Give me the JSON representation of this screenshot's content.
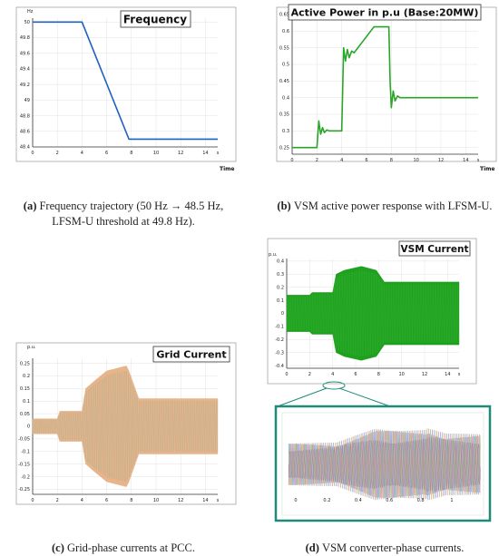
{
  "chart_data": [
    {
      "id": "a",
      "type": "line",
      "title": "Frequency",
      "xlabel": "Time",
      "ylabel": "Hz",
      "xlim": [
        0,
        15
      ],
      "ylim": [
        48.4,
        50.05
      ],
      "x_ticks": [
        "0",
        "2",
        "4",
        "6",
        "8",
        "10",
        "12",
        "14",
        "s"
      ],
      "y_ticks": [
        "50",
        "49.8",
        "49.6",
        "49.4",
        "49.2",
        "49",
        "48.8",
        "48.6",
        "48.4"
      ],
      "series": [
        {
          "color": "#1f5fc0",
          "x": [
            0,
            4,
            7.8,
            15
          ],
          "y": [
            50,
            50,
            48.5,
            48.5
          ]
        }
      ],
      "caption_label": "(a)",
      "caption": "Frequency trajectory (50 Hz → 48.5 Hz, LFSM-U threshold at 49.8 Hz)."
    },
    {
      "id": "b",
      "type": "line",
      "title": "Active Power in p.u (Base:20MW)",
      "xlabel": "Time",
      "ylabel": "",
      "xlim": [
        0,
        15
      ],
      "ylim": [
        0.23,
        0.65
      ],
      "x_ticks": [
        "0",
        "2",
        "4",
        "6",
        "8",
        "10",
        "12",
        "14",
        "s"
      ],
      "y_ticks": [
        "0.65",
        "0.6",
        "0.55",
        "0.5",
        "0.45",
        "0.4",
        "0.35",
        "0.3",
        "0.25"
      ],
      "series": [
        {
          "color": "#2aa52a",
          "x": [
            0,
            2,
            2.15,
            2.3,
            2.45,
            2.6,
            2.8,
            3.0,
            4.0,
            4.15,
            4.3,
            4.45,
            4.6,
            4.8,
            5.0,
            6.6,
            7.8,
            7.9,
            8.0,
            8.15,
            8.3,
            8.5,
            8.7,
            15
          ],
          "y": [
            0.25,
            0.25,
            0.33,
            0.29,
            0.31,
            0.295,
            0.303,
            0.3,
            0.3,
            0.55,
            0.51,
            0.545,
            0.52,
            0.54,
            0.535,
            0.613,
            0.613,
            0.45,
            0.37,
            0.42,
            0.39,
            0.405,
            0.4,
            0.4
          ]
        }
      ],
      "caption_label": "(b)",
      "caption": "VSM active power response with LFSM-U."
    },
    {
      "id": "c",
      "type": "area",
      "title": "Grid Current",
      "xlabel": "Time",
      "ylabel": "p.u.",
      "xlim": [
        0,
        15
      ],
      "ylim": [
        -0.27,
        0.27
      ],
      "x_ticks": [
        "0",
        "2",
        "4",
        "6",
        "8",
        "10",
        "12",
        "14",
        "s"
      ],
      "y_ticks": [
        "0.25",
        "0.2",
        "0.15",
        "0.1",
        "0.05",
        "0",
        "-0.05",
        "-0.1",
        "-0.15",
        "-0.2",
        "-0.25"
      ],
      "series": [
        {
          "color": "#e8b48c",
          "envelope_x": [
            0,
            2,
            2.2,
            4,
            4.3,
            5,
            6,
            7.6,
            7.8,
            8.6,
            15
          ],
          "upper": [
            0.03,
            0.03,
            0.06,
            0.06,
            0.15,
            0.18,
            0.22,
            0.24,
            0.22,
            0.11,
            0.11
          ],
          "lower": [
            -0.03,
            -0.03,
            -0.06,
            -0.06,
            -0.15,
            -0.18,
            -0.22,
            -0.24,
            -0.22,
            -0.11,
            -0.11
          ]
        }
      ],
      "caption_label": "(c)",
      "caption": "Grid-phase currents at PCC."
    },
    {
      "id": "d",
      "type": "area",
      "title": "VSM Current",
      "xlabel": "Time",
      "ylabel": "p.u.",
      "xlim": [
        0,
        15
      ],
      "ylim": [
        -0.42,
        0.42
      ],
      "x_ticks": [
        "0",
        "2",
        "4",
        "6",
        "8",
        "10",
        "12",
        "14",
        "s"
      ],
      "y_ticks": [
        "0.4",
        "0.3",
        "0.2",
        "0.1",
        "0",
        "-0.1",
        "-0.2",
        "-0.3",
        "-0.4"
      ],
      "series": [
        {
          "color": "#1fa01f",
          "envelope_x": [
            0,
            2,
            2.2,
            4,
            4.3,
            5,
            6.5,
            7.8,
            8.5,
            15
          ],
          "upper": [
            0.14,
            0.14,
            0.16,
            0.16,
            0.3,
            0.33,
            0.36,
            0.33,
            0.24,
            0.24
          ],
          "lower": [
            -0.14,
            -0.14,
            -0.16,
            -0.16,
            -0.3,
            -0.33,
            -0.36,
            -0.33,
            -0.24,
            -0.24
          ]
        }
      ],
      "inset_ticks": [
        "0",
        "0.2",
        "0.4",
        "0.6",
        "0.8",
        "1"
      ],
      "caption_label": "(d)",
      "caption": "VSM converter-phase currents."
    }
  ]
}
